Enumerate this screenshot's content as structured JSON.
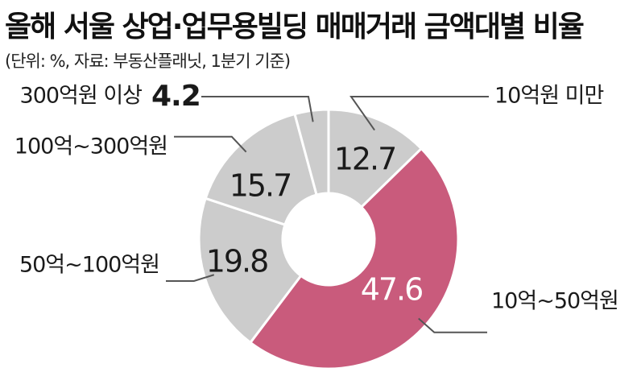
{
  "title": "올해 서울 상업·업무용빌딩 매매거래 금액대별 비율",
  "subtitle": "(단위: %, 자료: 부동산플래닛, 1분기 기준)",
  "colors": {
    "highlight": "#c95b7c",
    "neutral": "#cccccc",
    "leader": "#555555"
  },
  "chart_data": {
    "type": "pie",
    "subtype": "donut",
    "categories": [
      "10억원 미만",
      "10억~50억원",
      "50억~100억원",
      "100억~300억원",
      "300억원 이상"
    ],
    "values": [
      12.7,
      47.6,
      19.8,
      15.7,
      4.2
    ],
    "value_labels": [
      "12.7",
      "47.6",
      "19.8",
      "15.7",
      "4.2"
    ],
    "highlight_index": 1,
    "start": "top, clockwise"
  }
}
